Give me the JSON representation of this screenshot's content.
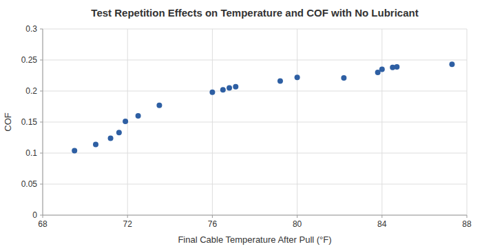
{
  "chart_data": {
    "type": "scatter",
    "title": "Test Repetition Effects on Temperature and COF with No Lubricant",
    "xlabel": "Final Cable Temperature After Pull (°F)",
    "ylabel": "COF",
    "x": [
      69.5,
      70.5,
      71.2,
      71.6,
      71.9,
      72.5,
      73.5,
      76.0,
      76.5,
      76.8,
      77.1,
      79.2,
      80.0,
      82.2,
      83.8,
      84.0,
      84.5,
      84.7,
      87.3
    ],
    "y": [
      0.104,
      0.114,
      0.124,
      0.133,
      0.151,
      0.16,
      0.177,
      0.198,
      0.202,
      0.205,
      0.207,
      0.216,
      0.222,
      0.221,
      0.23,
      0.235,
      0.238,
      0.239,
      0.243
    ],
    "xlim": [
      68,
      88
    ],
    "ylim": [
      0,
      0.3
    ],
    "xticks": [
      68,
      72,
      76,
      80,
      84,
      88
    ],
    "yticks": [
      0,
      0.05,
      0.1,
      0.15,
      0.2,
      0.25,
      0.3
    ],
    "color": "#2E5FA3",
    "grid": true
  }
}
